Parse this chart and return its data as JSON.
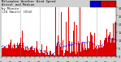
{
  "title": "Milwaukee Weather Wind Speed  Actual and Median  by Minute  (24 Hours) (Old)",
  "bar_color": "#dd0000",
  "line_color": "#0000ee",
  "bg_color": "#ffffff",
  "outer_bg": "#d0d0d0",
  "n_points": 1440,
  "y_max": 30,
  "y_min": 0,
  "grid_color": "#888888",
  "title_fontsize": 2.8,
  "tick_fontsize": 2.4,
  "legend_blue": "#0000cc",
  "legend_red": "#cc0000"
}
